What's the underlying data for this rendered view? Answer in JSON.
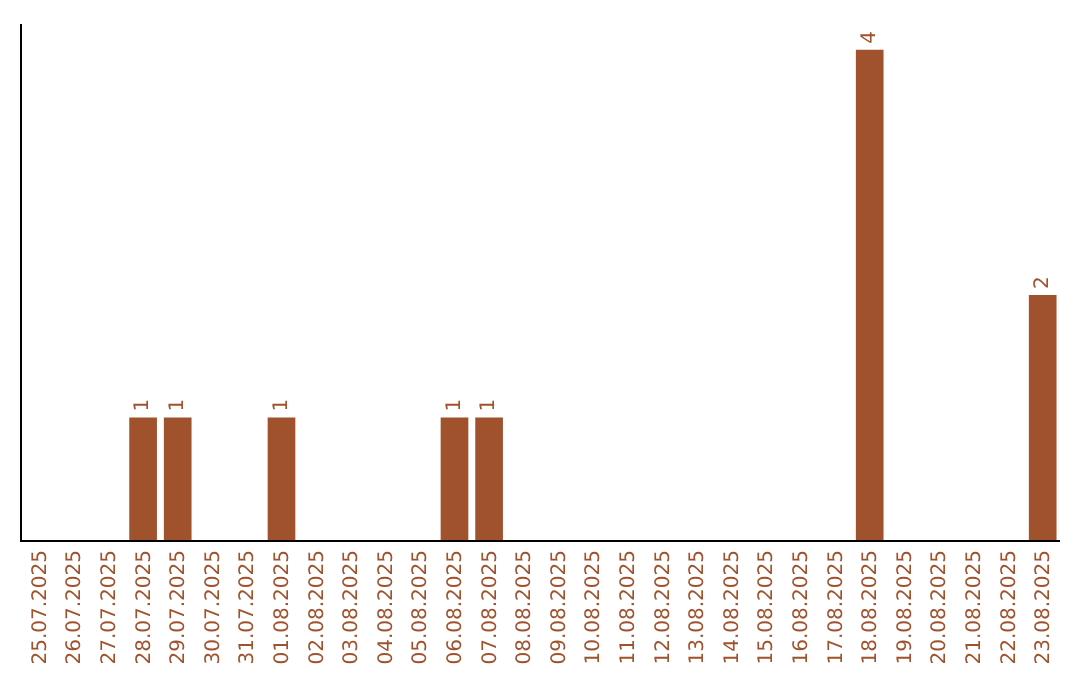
{
  "chart_data": {
    "type": "bar",
    "categories": [
      "25.07.2025",
      "26.07.2025",
      "27.07.2025",
      "28.07.2025",
      "29.07.2025",
      "30.07.2025",
      "31.07.2025",
      "01.08.2025",
      "02.08.2025",
      "03.08.2025",
      "04.08.2025",
      "05.08.2025",
      "06.08.2025",
      "07.08.2025",
      "08.08.2025",
      "09.08.2025",
      "10.08.2025",
      "11.08.2025",
      "12.08.2025",
      "13.08.2025",
      "14.08.2025",
      "15.08.2025",
      "16.08.2025",
      "17.08.2025",
      "18.08.2025",
      "19.08.2025",
      "20.08.2025",
      "21.08.2025",
      "22.08.2025",
      "23.08.2025"
    ],
    "values": [
      0,
      0,
      0,
      1,
      1,
      0,
      0,
      1,
      0,
      0,
      0,
      0,
      1,
      1,
      0,
      0,
      0,
      0,
      0,
      0,
      0,
      0,
      0,
      0,
      4,
      0,
      0,
      0,
      0,
      2
    ],
    "value_labels": [
      null,
      null,
      null,
      "1",
      "1",
      null,
      null,
      "1",
      null,
      null,
      null,
      null,
      "1",
      "1",
      null,
      null,
      null,
      null,
      null,
      null,
      null,
      null,
      null,
      null,
      "4",
      null,
      null,
      null,
      null,
      "2"
    ],
    "color": "#a0522d"
  }
}
